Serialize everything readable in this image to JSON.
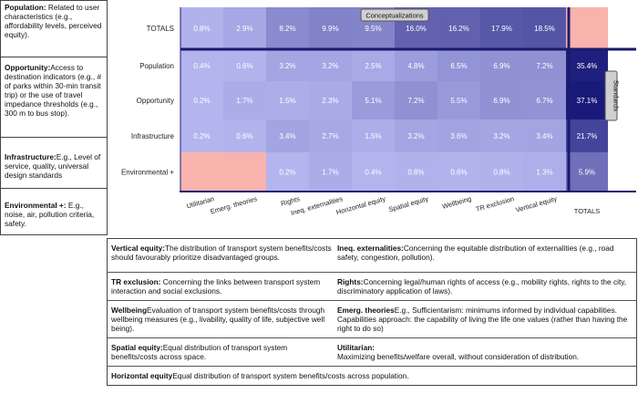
{
  "left_descriptions": [
    {
      "title": "Population:",
      "text": " Related to user characteristics (e.g., affordability levels, perceived equity)."
    },
    {
      "title": "Opportunity:",
      "text": "Access to destination indicators (e.g., # of parks within 30-min transit trip) or the use of travel impedance thresholds (e.g., 300 m to bus stop)."
    },
    {
      "title": "Infrastructure:",
      "text": "E.g., Level of service, quality, universal design standards"
    },
    {
      "title": "Environmental +:",
      "text": " E.g., noise, air, pollution criteria, safety."
    }
  ],
  "chart_data": {
    "type": "heatmap",
    "columns": [
      "Utilitarian",
      "Emerg. theories",
      "Rights",
      "Ineq. externalities",
      "Horizontal equity",
      "Spatial equity",
      "Wellbeing",
      "TR exclusion",
      "Vertical equity",
      "TOTALS"
    ],
    "rows": [
      "TOTALS",
      "Population",
      "Opportunity",
      "Infrastructure",
      "Environmental +"
    ],
    "values": [
      [
        0.8,
        2.9,
        8.2,
        9.9,
        9.5,
        16.0,
        16.2,
        17.9,
        18.5,
        null
      ],
      [
        0.4,
        0.6,
        3.2,
        3.2,
        2.5,
        4.8,
        6.5,
        6.9,
        7.2,
        35.4
      ],
      [
        0.2,
        1.7,
        1.5,
        2.3,
        5.1,
        7.2,
        5.5,
        6.9,
        6.7,
        37.1
      ],
      [
        0.2,
        0.6,
        3.4,
        2.7,
        1.5,
        3.2,
        3.6,
        3.2,
        3.4,
        21.7
      ],
      [
        null,
        null,
        0.2,
        1.7,
        0.4,
        0.8,
        0.6,
        0.8,
        1.3,
        5.9
      ]
    ],
    "labels": [
      [
        "0.8%",
        "2.9%",
        "8.2%",
        "9.9%",
        "9.5%",
        "16.0%",
        "16.2%",
        "17.9%",
        "18.5%",
        ""
      ],
      [
        "0.4%",
        "0.6%",
        "3.2%",
        "3.2%",
        "2.5%",
        "4.8%",
        "6.5%",
        "6.9%",
        "7.2%",
        "35.4%"
      ],
      [
        "0.2%",
        "1.7%",
        "1.5%",
        "2.3%",
        "5.1%",
        "7.2%",
        "5.5%",
        "6.9%",
        "6.7%",
        "37.1%"
      ],
      [
        "0.2%",
        "0.6%",
        "3.4%",
        "2.7%",
        "1.5%",
        "3.2%",
        "3.6%",
        "3.2%",
        "3.4%",
        "21.7%"
      ],
      [
        "",
        "",
        "0.2%",
        "1.7%",
        "0.4%",
        "0.8%",
        "0.6%",
        "0.8%",
        "1.3%",
        "5.9%"
      ]
    ],
    "top_label": "Conceptualizations",
    "side_label": "Standards",
    "color_scale": {
      "low": "#b5b6ef",
      "high": "#1a1a7a",
      "empty": "#f8b3ad"
    }
  },
  "definitions": [
    {
      "title": "Vertical equity:",
      "text": "The distribution of transport system benefits/costs should favourably prioritize disadvantaged groups."
    },
    {
      "title": "Ineq. externalities:",
      "text": "Concerning the equitable distribution of externalities (e.g., road safety, congestion, pollution)."
    },
    {
      "title": "TR exclusion:",
      "text": " Concerning the links between transport system interaction and social exclusions."
    },
    {
      "title": "Rights:",
      "text": "Concerning legal/human rights of access (e.g., mobility rights, rights to the city, discriminatory application of laws)."
    },
    {
      "title": "Wellbeing",
      "text": "Evaluation of transport system benefits/costs through wellbeing measures (e.g., livability, quality of life, subjective well being)."
    },
    {
      "title": "Emerg. theories",
      "text": "E.g., Sufficientarism: minimums informed by individual capabilities. Capabilities approach: the capability of living the life one values (rather than having the right to do so)"
    },
    {
      "title": "Spatial equity:",
      "text": "Equal distribution of transport system benefits/costs across space."
    },
    {
      "title": "Utilitarian:",
      "text": "Maximizing benefits/welfare overall, without consideration of distribution."
    },
    {
      "title": "Horizontal equity",
      "text": "Equal distribution of transport system benefits/costs across population."
    }
  ]
}
